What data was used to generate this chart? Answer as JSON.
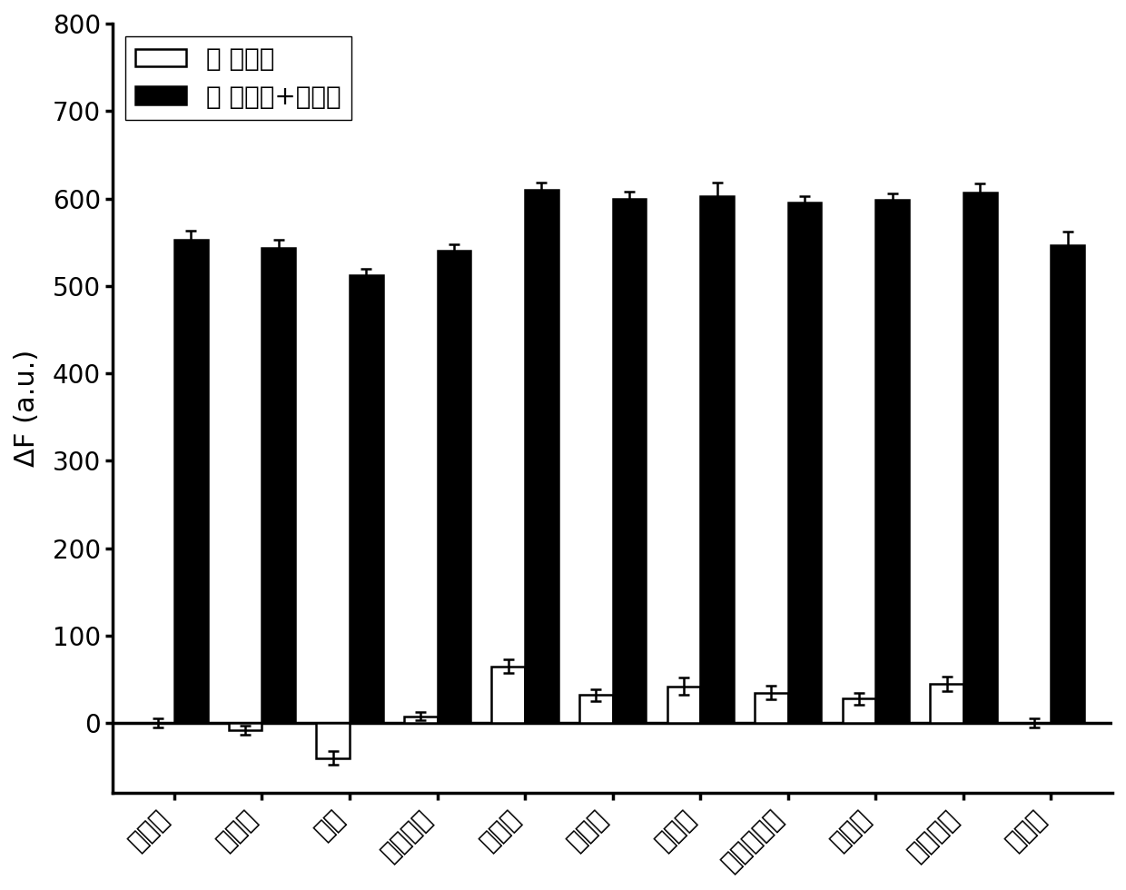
{
  "categories": [
    "噌虫胺",
    "甲拌窞",
    "乐果",
    "氧化乐果",
    "辛硫籁",
    "毒死蜡",
    "敌百虫",
    "甲基对硫籁",
    "敌敌畏",
    "水胺硫籁",
    "丙溢籁"
  ],
  "white_bars": [
    0,
    -8,
    -40,
    8,
    65,
    32,
    42,
    35,
    28,
    45,
    0
  ],
  "black_bars": [
    553,
    543,
    512,
    540,
    610,
    600,
    603,
    595,
    598,
    607,
    547
  ],
  "white_errors": [
    5,
    5,
    8,
    5,
    8,
    7,
    10,
    8,
    7,
    8,
    5
  ],
  "black_errors": [
    10,
    10,
    8,
    8,
    8,
    8,
    15,
    8,
    8,
    10,
    15
  ],
  "legend_white": "其 它蝶标",
  "legend_black": "其 它蝶标+噌虫胺",
  "ylabel": "ΔF (a.u.)",
  "ylim_min": -80,
  "ylim_max": 800,
  "yticks": [
    0,
    100,
    200,
    300,
    400,
    500,
    600,
    700,
    800
  ],
  "bar_width": 0.38,
  "white_color": "#ffffff",
  "black_color": "#000000",
  "edge_color": "#000000",
  "background_color": "#ffffff",
  "tick_fontsize": 20,
  "label_fontsize": 22,
  "legend_fontsize": 20
}
